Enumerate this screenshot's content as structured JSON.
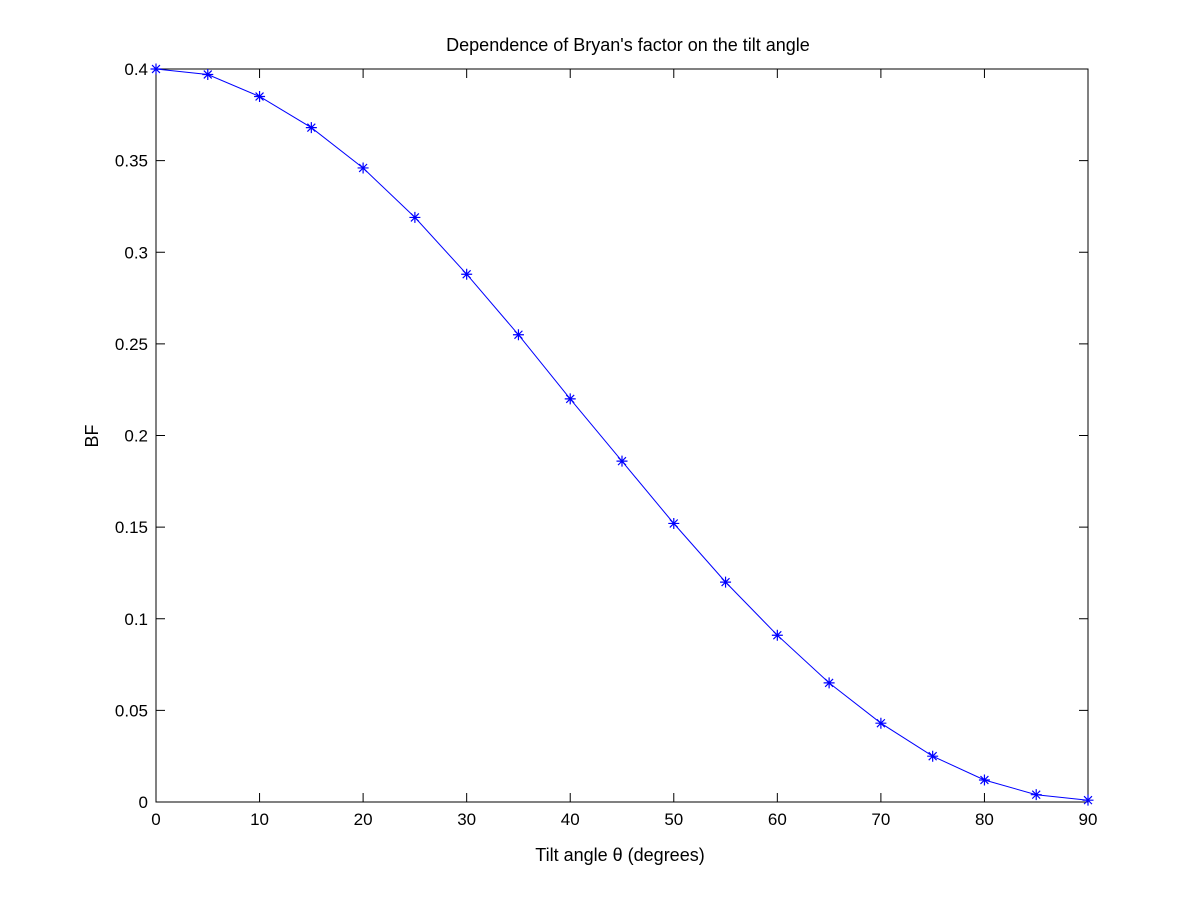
{
  "chart_data": {
    "type": "line",
    "title": "Dependence of Bryan's factor on the tilt angle",
    "xlabel": "Tilt angle θ (degrees)",
    "ylabel": "BF",
    "xlim": [
      0,
      90
    ],
    "ylim": [
      0,
      0.4
    ],
    "grid": false,
    "marker": "asterisk",
    "line_color": "#0000ff",
    "x_ticks": [
      0,
      10,
      20,
      30,
      40,
      50,
      60,
      70,
      80,
      90
    ],
    "x_tick_labels": [
      "0",
      "10",
      "20",
      "30",
      "40",
      "50",
      "60",
      "70",
      "80",
      "90"
    ],
    "y_ticks": [
      0,
      0.05,
      0.1,
      0.15,
      0.2,
      0.25,
      0.3,
      0.35,
      0.4
    ],
    "y_tick_labels": [
      "0",
      "0.05",
      "0.1",
      "0.15",
      "0.2",
      "0.25",
      "0.3",
      "0.35",
      "0.4"
    ],
    "x": [
      0,
      5,
      10,
      15,
      20,
      25,
      30,
      35,
      40,
      45,
      50,
      55,
      60,
      65,
      70,
      75,
      80,
      85,
      90
    ],
    "series": [
      {
        "values": [
          0.4,
          0.397,
          0.385,
          0.368,
          0.346,
          0.319,
          0.288,
          0.255,
          0.22,
          0.186,
          0.152,
          0.12,
          0.091,
          0.065,
          0.043,
          0.025,
          0.012,
          0.004,
          0.001
        ]
      }
    ]
  }
}
